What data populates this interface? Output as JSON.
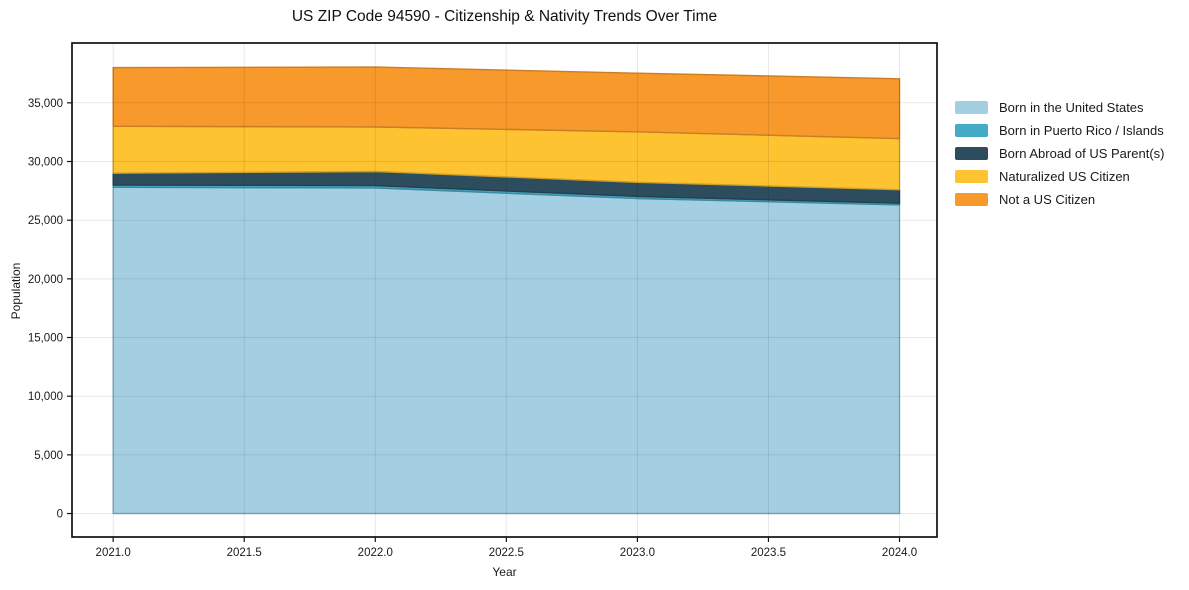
{
  "title": "US ZIP Code 94590 - Citizenship & Nativity Trends Over Time",
  "colors": {
    "background": "#ffffff",
    "spine": "#111111",
    "grid": "#000000",
    "text": "#1a1a1a"
  },
  "chart_data": {
    "type": "area",
    "stacked": true,
    "title": "US ZIP Code 94590 - Citizenship & Nativity Trends Over Time",
    "xlabel": "Year",
    "ylabel": "Population",
    "x": [
      2021,
      2022,
      2023,
      2024
    ],
    "series": [
      {
        "name": "Born in the United States",
        "color": "#a4cfe3",
        "values": [
          27800,
          27750,
          26850,
          26300
        ]
      },
      {
        "name": "Born in Puerto Rico / Islands",
        "color": "#45aac6",
        "values": [
          200,
          200,
          180,
          150
        ]
      },
      {
        "name": "Born Abroad of US Parent(s)",
        "color": "#2d4d5f",
        "values": [
          1000,
          1200,
          1200,
          1150
        ]
      },
      {
        "name": "Naturalized US Citizen",
        "color": "#fdc330",
        "values": [
          4000,
          3800,
          4300,
          4350
        ]
      },
      {
        "name": "Not a US Citizen",
        "color": "#f8992b",
        "values": [
          5000,
          5100,
          5000,
          5100
        ]
      }
    ],
    "totals": [
      38000,
      38050,
      37530,
      37050
    ],
    "xlim": [
      2020.843,
      2024.143
    ],
    "ylim": [
      -2000,
      40100
    ],
    "xticks": {
      "values": [
        2021.0,
        2021.5,
        2022.0,
        2022.5,
        2023.0,
        2023.5,
        2024.0
      ],
      "labels": [
        "2021.0",
        "2021.5",
        "2022.0",
        "2022.5",
        "2023.0",
        "2023.5",
        "2024.0"
      ]
    },
    "yticks": {
      "values": [
        0,
        5000,
        10000,
        15000,
        20000,
        25000,
        30000,
        35000
      ],
      "labels": [
        "0",
        "5,000",
        "10,000",
        "15,000",
        "20,000",
        "25,000",
        "30,000",
        "35,000"
      ]
    },
    "grid": true,
    "legend_position": "right-outside"
  }
}
